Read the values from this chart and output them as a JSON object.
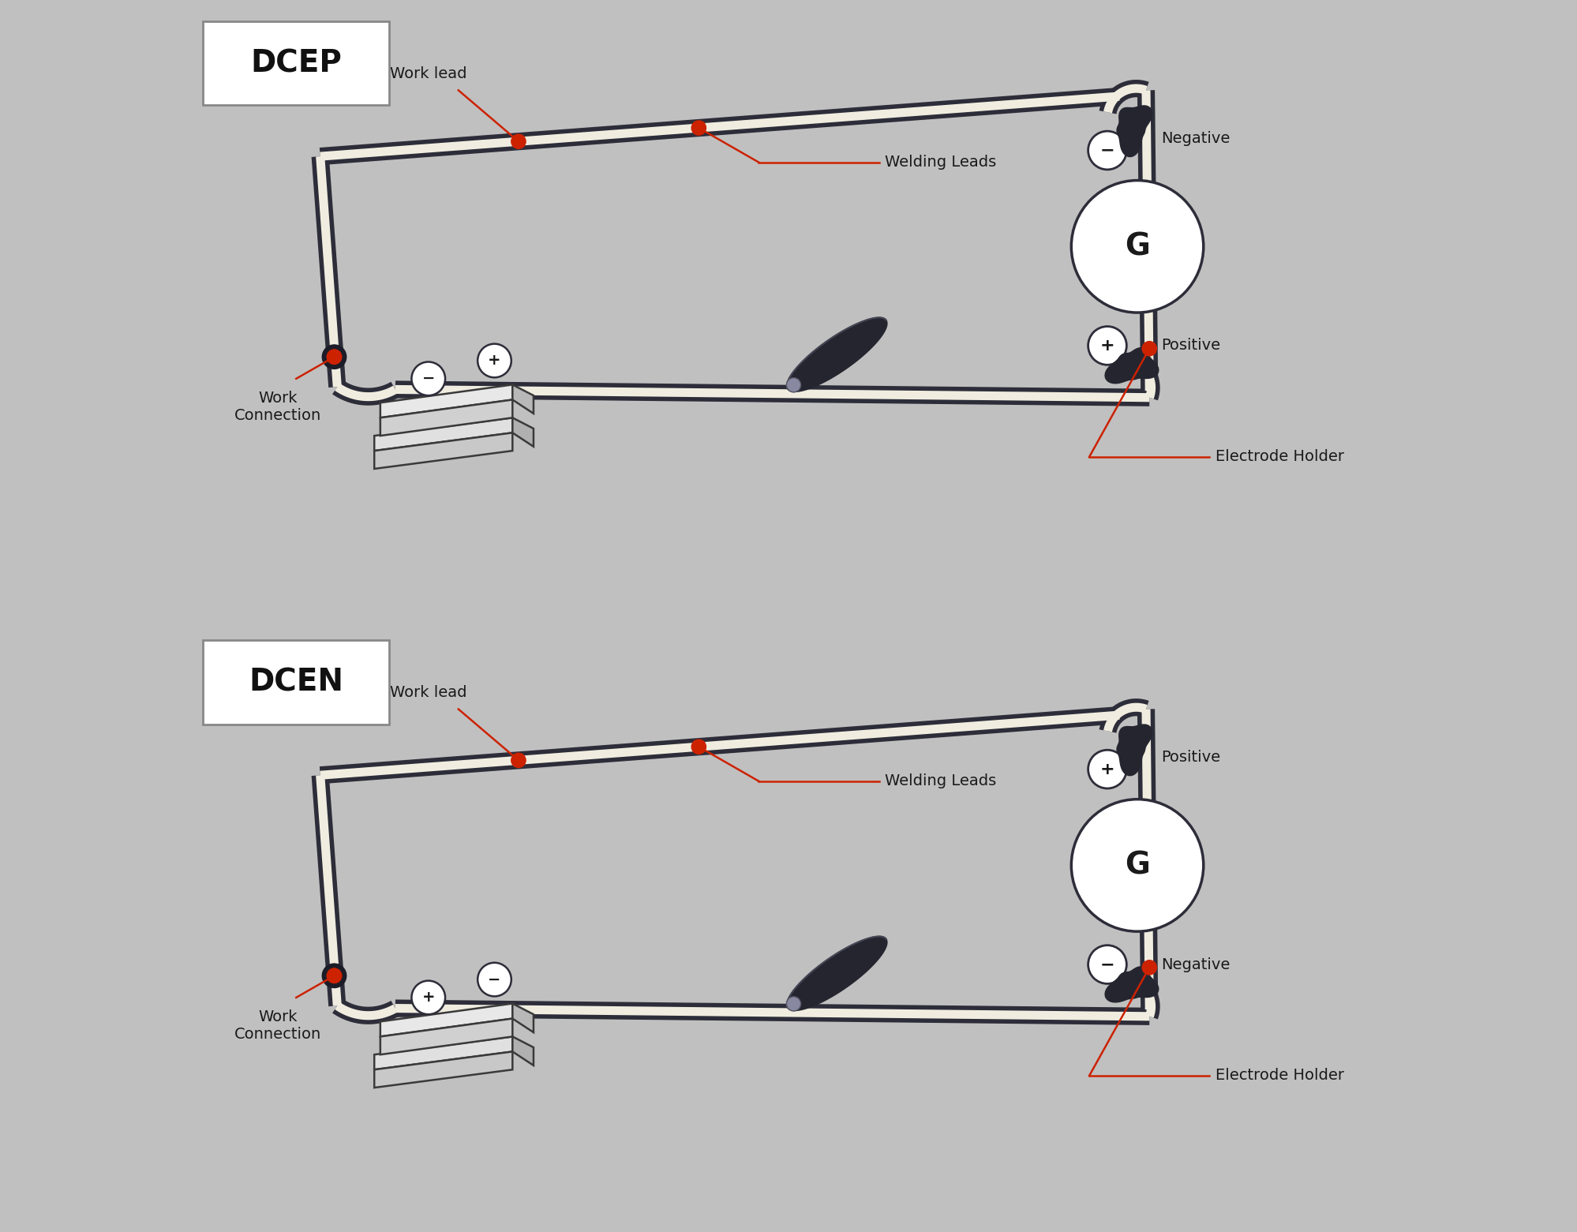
{
  "bg_color": "#ddd96a",
  "outer_bg": "#c0c0c0",
  "wire_dark": "#2d2d3a",
  "wire_light": "#f0ede0",
  "wire_lw_outer": 16,
  "wire_lw_inner": 8,
  "red": "#cc2200",
  "label_color": "#1a1a1a",
  "title_fs": 28,
  "label_fs": 14,
  "dcep_title": "DCEP",
  "dcen_title": "DCEN",
  "panel1": {
    "work_lead": "Work lead",
    "welding_leads": "Welding Leads",
    "work_connection": "Work\nConnection",
    "electrode_holder": "Electrode Holder",
    "top_label": "Negative",
    "bot_label": "Positive",
    "top_sym": "−",
    "bot_sym": "+",
    "wc_sym": "−",
    "wc_sym2": "+"
  },
  "panel2": {
    "work_lead": "Work lead",
    "welding_leads": "Welding Leads",
    "work_connection": "Work\nConnection",
    "electrode_holder": "Electrode Holder",
    "top_label": "Positive",
    "bot_label": "Negative",
    "top_sym": "+",
    "bot_sym": "−",
    "wc_sym": "+",
    "wc_sym2": "−"
  }
}
